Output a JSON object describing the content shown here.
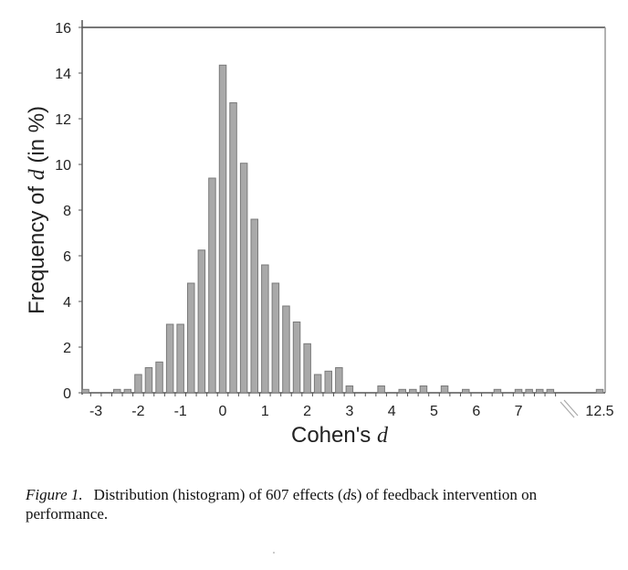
{
  "chart_data": {
    "type": "bar",
    "title": "",
    "xlabel": "Cohen's d",
    "ylabel": "Frequency of d (in %)",
    "ylim": [
      0,
      16
    ],
    "yticks": [
      0,
      2,
      4,
      6,
      8,
      10,
      12,
      14,
      16
    ],
    "xticks": [
      "-3",
      "-2",
      "-1",
      "0",
      "1",
      "2",
      "3",
      "4",
      "5",
      "6",
      "7",
      "12.5"
    ],
    "axis_break": "between 7.75 and 12.5",
    "bin_width": 0.25,
    "grid": false,
    "legend": null,
    "x": [
      -3.25,
      -3.0,
      -2.75,
      -2.5,
      -2.25,
      -2.0,
      -1.75,
      -1.5,
      -1.25,
      -1.0,
      -0.75,
      -0.5,
      -0.25,
      0.0,
      0.25,
      0.5,
      0.75,
      1.0,
      1.25,
      1.5,
      1.75,
      2.0,
      2.25,
      2.5,
      2.75,
      3.0,
      3.25,
      3.5,
      3.75,
      4.0,
      4.25,
      4.5,
      4.75,
      5.0,
      5.25,
      5.5,
      5.75,
      6.0,
      6.25,
      6.5,
      6.75,
      7.0,
      7.25,
      7.5,
      7.75,
      12.5
    ],
    "values": [
      0.15,
      0,
      0,
      0.15,
      0.15,
      0.8,
      1.1,
      1.35,
      3.0,
      3.0,
      4.8,
      6.25,
      9.4,
      14.35,
      12.7,
      10.05,
      7.6,
      5.6,
      4.8,
      3.8,
      3.1,
      2.15,
      0.8,
      0.95,
      1.1,
      0.3,
      0,
      0,
      0.3,
      0,
      0.15,
      0.15,
      0.3,
      0,
      0.3,
      0,
      0.15,
      0,
      0,
      0.15,
      0,
      0.15,
      0.15,
      0.15,
      0.15,
      0.15
    ],
    "n_effects": 607
  },
  "caption": {
    "figure_label": "Figure 1.",
    "text_before": "Distribution (histogram) of 607 effects (",
    "italic_d": "d",
    "text_after": "s) of feedback intervention on performance."
  },
  "colors": {
    "bar_fill": "#a9a9a9",
    "bar_stroke": "#7a7a7a",
    "axis": "#555555"
  }
}
